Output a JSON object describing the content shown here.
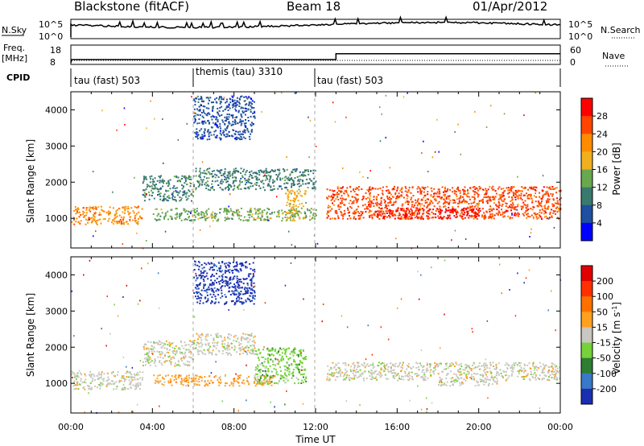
{
  "header": {
    "title_left": "Blackstone (fitACF)",
    "title_mid": "Beam 18",
    "title_right": "01/Apr/2012"
  },
  "strip_panels": {
    "nsky_label": "N.Sky",
    "nsky_ticks": [
      "10^5",
      "10^0"
    ],
    "nsearch_label": "N.Search",
    "nsearch_ticks": [
      "10^5",
      "10^0"
    ],
    "freq_label_1": "Freq.",
    "freq_label_2": "[MHz]",
    "freq_ticks": [
      "18",
      "8"
    ],
    "nave_label": "Nave",
    "nave_ticks": [
      "60",
      "0"
    ],
    "cpid_label": "CPID",
    "cpid_segments": [
      {
        "label": "tau (fast) 503",
        "start_h": 0,
        "end_h": 6
      },
      {
        "label": "themis (tau) 3310",
        "start_h": 6,
        "end_h": 12
      },
      {
        "label": "tau (fast) 503",
        "start_h": 12,
        "end_h": 24
      }
    ],
    "freq_step_time_h": 13,
    "freq_low_mhz": 10.5,
    "freq_high_mhz": 13.5
  },
  "colors": {
    "power": [
      "#0000ff",
      "#1f4fa0",
      "#3a7a6e",
      "#6aa84f",
      "#f0b020",
      "#ff8c00",
      "#ff4500",
      "#ff0000"
    ],
    "velocity": [
      "#1a2fb0",
      "#3a78c8",
      "#2e7d32",
      "#76d23a",
      "#c8c8c0",
      "#ffa020",
      "#ff7000",
      "#ff3000",
      "#e00000"
    ]
  },
  "chart_data": [
    {
      "type": "heatmap",
      "panel": "power",
      "ylabel": "Slant Range [km]",
      "xlim_h": [
        0,
        24
      ],
      "ylim_km": [
        180,
        4500
      ],
      "yticks": [
        "4000",
        "3000",
        "2000",
        "1000"
      ],
      "colorbar_label": "Power [dB]",
      "colorbar_ticks": [
        "28",
        "24",
        "20",
        "16",
        "12",
        "8",
        "4"
      ],
      "regions": [
        {
          "t0": 0,
          "t1": 3.5,
          "r0": 850,
          "r1": 1350,
          "level": 5
        },
        {
          "t0": 3.5,
          "t1": 6,
          "r0": 1500,
          "r1": 2200,
          "level": 2
        },
        {
          "t0": 4,
          "t1": 12,
          "r0": 950,
          "r1": 1300,
          "level": 3
        },
        {
          "t0": 6,
          "t1": 12,
          "r0": 1800,
          "r1": 2400,
          "level": 2
        },
        {
          "t0": 6,
          "t1": 9,
          "r0": 3200,
          "r1": 4400,
          "level": 1
        },
        {
          "t0": 10.5,
          "t1": 11.5,
          "r0": 1000,
          "r1": 1800,
          "level": 4
        },
        {
          "t0": 12.5,
          "t1": 24,
          "r0": 1000,
          "r1": 1900,
          "level": 6
        },
        {
          "t0": 15,
          "t1": 20,
          "r0": 1000,
          "r1": 1300,
          "level": 7
        }
      ]
    },
    {
      "type": "heatmap",
      "panel": "velocity",
      "ylabel": "Slant Range [km]",
      "xlabel": "Time UT",
      "xlim_h": [
        0,
        24
      ],
      "ylim_km": [
        180,
        4500
      ],
      "yticks": [
        "4000",
        "3000",
        "2000",
        "1000"
      ],
      "xticks": [
        "00:00",
        "04:00",
        "08:00",
        "12:00",
        "16:00",
        "20:00",
        "00:00"
      ],
      "colorbar_label_1": "Velocity [m s",
      "colorbar_label_2": "-1",
      "colorbar_label_3": "]",
      "colorbar_ticks": [
        "200",
        "100",
        "50",
        "15",
        "-15",
        "-50",
        "-100",
        "-200"
      ],
      "regions": [
        {
          "t0": 0,
          "t1": 3.5,
          "r0": 850,
          "r1": 1350,
          "level": 4
        },
        {
          "t0": 3.5,
          "t1": 6,
          "r0": 1500,
          "r1": 2200,
          "level": 4
        },
        {
          "t0": 4,
          "t1": 10,
          "r0": 950,
          "r1": 1250,
          "level": 5
        },
        {
          "t0": 6,
          "t1": 9,
          "r0": 1800,
          "r1": 2400,
          "level": 4
        },
        {
          "t0": 6,
          "t1": 9,
          "r0": 3200,
          "r1": 4400,
          "level": 0
        },
        {
          "t0": 9,
          "t1": 11.5,
          "r0": 1000,
          "r1": 2000,
          "level": 3
        },
        {
          "t0": 12.5,
          "t1": 24,
          "r0": 1100,
          "r1": 1600,
          "level": 4
        },
        {
          "t0": 18,
          "t1": 21,
          "r0": 950,
          "r1": 1100,
          "level": 4
        }
      ]
    }
  ]
}
